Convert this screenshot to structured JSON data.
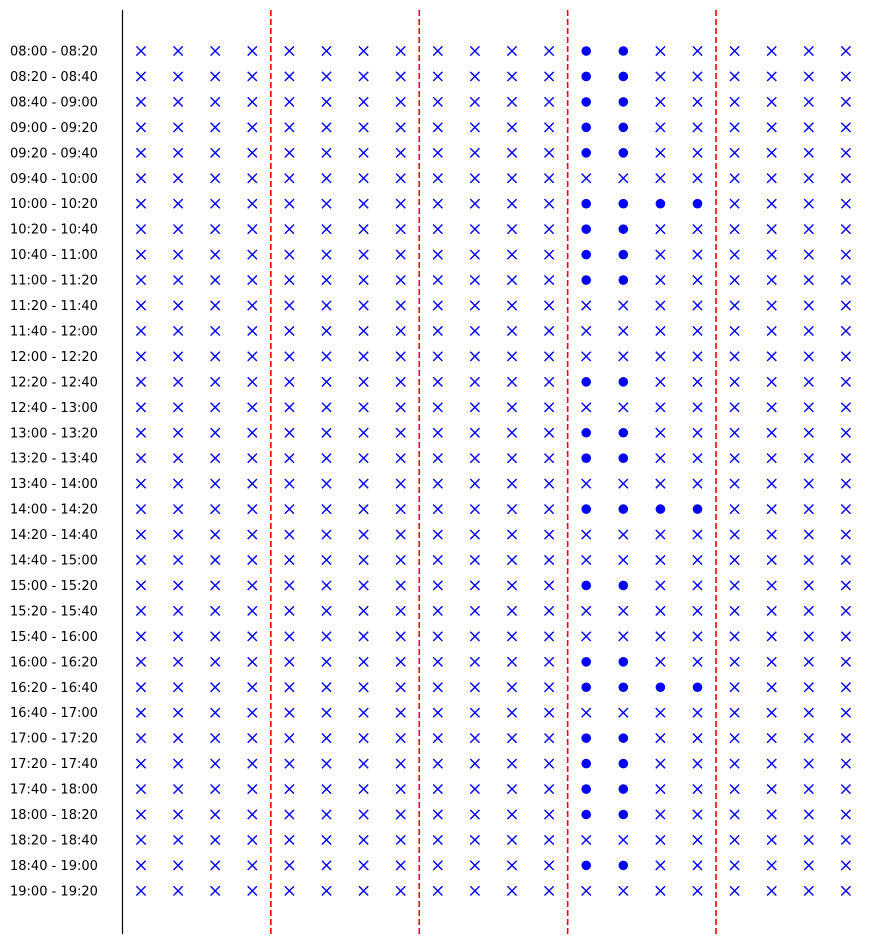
{
  "chart_data": {
    "type": "scatter",
    "title": "",
    "xlabel": "",
    "ylabel": "",
    "grid": false,
    "legend": "none",
    "columns": 20,
    "group_size": 4,
    "group_separators": "dashed-red",
    "marker_color": "#0000ff",
    "separator_color": "#ff0000",
    "markers": {
      "available": "filled-circle",
      "unavailable": "x"
    },
    "time_slots": [
      "08:00 - 08:20",
      "08:20 - 08:40",
      "08:40 - 09:00",
      "09:00 - 09:20",
      "09:20 - 09:40",
      "09:40 - 10:00",
      "10:00 - 10:20",
      "10:20 - 10:40",
      "10:40 - 11:00",
      "11:00 - 11:20",
      "11:20 - 11:40",
      "11:40 - 12:00",
      "12:00 - 12:20",
      "12:20 - 12:40",
      "12:40 - 13:00",
      "13:00 - 13:20",
      "13:20 - 13:40",
      "13:40 - 14:00",
      "14:00 - 14:20",
      "14:20 - 14:40",
      "14:40 - 15:00",
      "15:00 - 15:20",
      "15:20 - 15:40",
      "15:40 - 16:00",
      "16:00 - 16:20",
      "16:20 - 16:40",
      "16:40 - 17:00",
      "17:00 - 17:20",
      "17:20 - 17:40",
      "17:40 - 18:00",
      "18:00 - 18:20",
      "18:20 - 18:40",
      "18:40 - 19:00",
      "19:00 - 19:20"
    ],
    "filled_points": [
      {
        "slot": "08:00 - 08:20",
        "columns": [
          13,
          14
        ]
      },
      {
        "slot": "08:20 - 08:40",
        "columns": [
          13,
          14
        ]
      },
      {
        "slot": "08:40 - 09:00",
        "columns": [
          13,
          14
        ]
      },
      {
        "slot": "09:00 - 09:20",
        "columns": [
          13,
          14
        ]
      },
      {
        "slot": "09:20 - 09:40",
        "columns": [
          13,
          14
        ]
      },
      {
        "slot": "10:00 - 10:20",
        "columns": [
          13,
          14,
          15,
          16
        ]
      },
      {
        "slot": "10:20 - 10:40",
        "columns": [
          13,
          14
        ]
      },
      {
        "slot": "10:40 - 11:00",
        "columns": [
          13,
          14
        ]
      },
      {
        "slot": "11:00 - 11:20",
        "columns": [
          13,
          14
        ]
      },
      {
        "slot": "12:20 - 12:40",
        "columns": [
          13,
          14
        ]
      },
      {
        "slot": "13:00 - 13:20",
        "columns": [
          13,
          14
        ]
      },
      {
        "slot": "13:20 - 13:40",
        "columns": [
          13,
          14
        ]
      },
      {
        "slot": "14:00 - 14:20",
        "columns": [
          13,
          14,
          15,
          16
        ]
      },
      {
        "slot": "15:00 - 15:20",
        "columns": [
          13,
          14
        ]
      },
      {
        "slot": "16:00 - 16:20",
        "columns": [
          13,
          14
        ]
      },
      {
        "slot": "16:20 - 16:40",
        "columns": [
          13,
          14,
          15,
          16
        ]
      },
      {
        "slot": "17:00 - 17:20",
        "columns": [
          13,
          14
        ]
      },
      {
        "slot": "17:20 - 17:40",
        "columns": [
          13,
          14
        ]
      },
      {
        "slot": "17:40 - 18:00",
        "columns": [
          13,
          14
        ]
      },
      {
        "slot": "18:00 - 18:20",
        "columns": [
          13,
          14
        ]
      },
      {
        "slot": "18:40 - 19:00",
        "columns": [
          13,
          14
        ]
      }
    ]
  }
}
